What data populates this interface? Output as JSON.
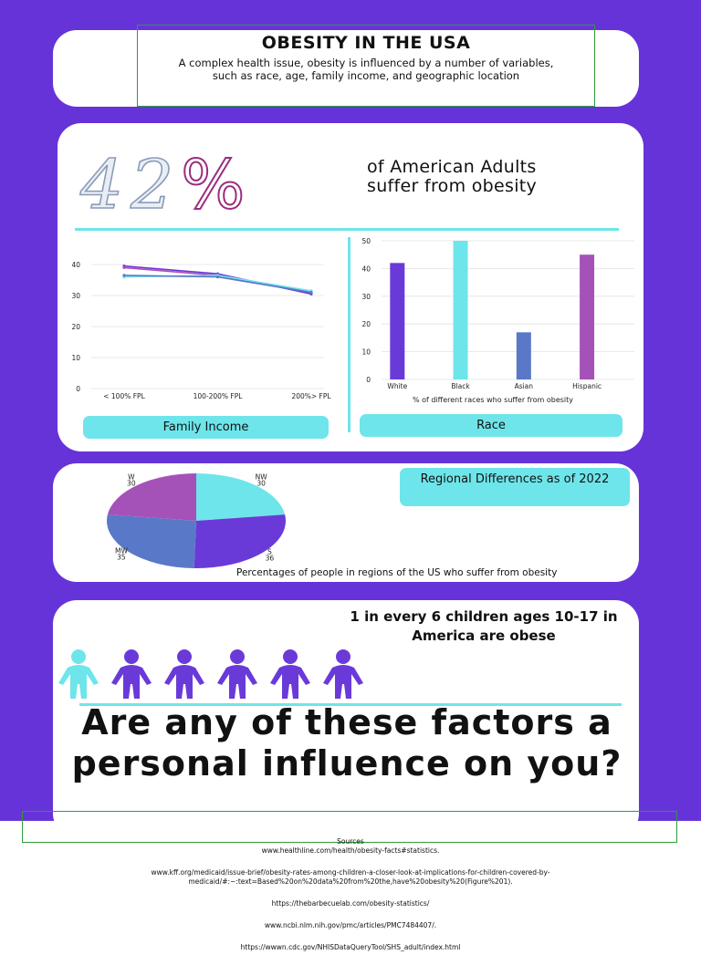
{
  "header": {
    "title": "OBESITY IN THE USA",
    "subtitle": "A complex health issue, obesity is influenced by a number of variables, such as race, age, family income, and geographic location"
  },
  "adults": {
    "big_number": "42",
    "percent_sign": "%",
    "line1": "of American Adults",
    "line2": "suffer from obesity"
  },
  "family_income": {
    "button_label": "Family Income"
  },
  "race": {
    "button_label": "Race",
    "caption": "% of different races who suffer from obesity"
  },
  "regional": {
    "heading": "Regional Differences as of 2022",
    "caption": "Percentages of people in regions of the US who suffer from obesity"
  },
  "children": {
    "text": "1 in every 6 children ages 10-17 in America are obese",
    "highlight_color": "#6ee5ea",
    "figure_color": "#6a3ad9"
  },
  "question": "Are any of these factors a personal influence on you?",
  "sources": {
    "heading": "Sources",
    "links": [
      "www.healthline.com/health/obesity-facts#statistics.",
      "www.kff.org/medicaid/issue-brief/obesity-rates-among-children-a-closer-look-at-implications-for-children-covered-by-medicaid/#:~:text=Based%20on%20data%20from%20the,have%20obesity%20(Figure%201).",
      "https://thebarbecuelab.com/obesity-statistics/",
      "www.ncbi.nlm.nih.gov/pmc/articles/PMC7484407/.",
      "https://wwwn.cdc.gov/NHISDataQueryTool/SHS_adult/index.html"
    ]
  },
  "chart_data": [
    {
      "type": "line",
      "categories": [
        "< 100% FPL",
        "100-200% FPL",
        "200%> FPL"
      ],
      "ylim": [
        0,
        40
      ],
      "yticks": [
        0,
        10,
        20,
        30,
        40
      ],
      "grid": true,
      "series": [
        {
          "color": "#6a3ad9",
          "values": [
            39.5,
            37,
            30.5
          ]
        },
        {
          "color": "#b04db8",
          "values": [
            39,
            36.5,
            31
          ]
        },
        {
          "color": "#6ee5ea",
          "values": [
            36,
            36.5,
            31.5
          ]
        },
        {
          "color": "#5a78c8",
          "values": [
            36.5,
            36,
            31
          ]
        }
      ]
    },
    {
      "type": "bar",
      "categories": [
        "White",
        "Black",
        "Asian",
        "Hispanic"
      ],
      "values": [
        42,
        50,
        17,
        45
      ],
      "colors": [
        "#6a3ad9",
        "#6ee5ea",
        "#5a78c8",
        "#a552b8"
      ],
      "ylim": [
        0,
        50
      ],
      "yticks": [
        0,
        10,
        20,
        30,
        40,
        50
      ],
      "xlabel": "% of different races who suffer from obesity",
      "grid": true
    },
    {
      "type": "pie",
      "labels": [
        "NW",
        "S",
        "MW",
        "W"
      ],
      "values": [
        30,
        36,
        35,
        30
      ],
      "colors": [
        "#6ee5ea",
        "#6a3ad9",
        "#5a78c8",
        "#a552b8"
      ]
    }
  ]
}
